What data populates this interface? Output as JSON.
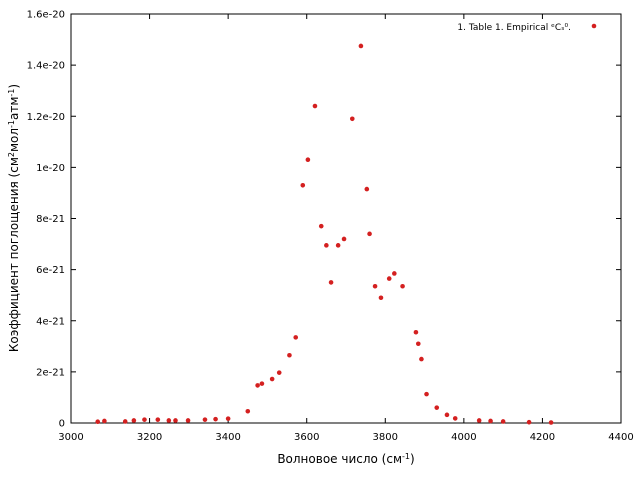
{
  "chart_data": {
    "type": "scatter",
    "xlabel": "Волновое число (см",
    "xlabel_sup": "-1",
    "xlabel_tail": ")",
    "ylabel": {
      "parts": [
        {
          "text": "Коэффициент поглощения (см",
          "sup": false
        },
        {
          "text": "2",
          "sup": true
        },
        {
          "text": "мол",
          "sup": false
        },
        {
          "text": "-1",
          "sup": true
        },
        {
          "text": "атм",
          "sup": false
        },
        {
          "text": "-1",
          "sup": true
        },
        {
          "text": ")",
          "sup": false
        }
      ]
    },
    "xlim": [
      3000,
      4400
    ],
    "ylim": [
      0,
      1.6e-20
    ],
    "xticks": [
      3000,
      3200,
      3400,
      3600,
      3800,
      4000,
      4200,
      4400
    ],
    "xtick_labels": [
      "3000",
      "3200",
      "3400",
      "3600",
      "3800",
      "4000",
      "4200",
      "4400"
    ],
    "yticks": [
      0,
      2e-21,
      4e-21,
      6e-21,
      8e-21,
      1e-20,
      1.2e-20,
      1.4e-20,
      1.6e-20
    ],
    "ytick_labels": [
      "0",
      "2e-21",
      "4e-21",
      "6e-21",
      "8e-21",
      "1e-20",
      "1.2e-20",
      "1.4e-20",
      "1.6e-20"
    ],
    "grid": false,
    "legend_position": "top-right",
    "series": [
      {
        "name": "1. Table 1. Empirical ᵉCₛ⁰.",
        "color": "#d42020",
        "points": [
          [
            3068,
            5e-23
          ],
          [
            3085,
            8e-23
          ],
          [
            3138,
            6e-23
          ],
          [
            3160,
            1e-22
          ],
          [
            3187,
            1.3e-22
          ],
          [
            3221,
            1.3e-22
          ],
          [
            3249,
            1e-22
          ],
          [
            3266,
            1e-22
          ],
          [
            3298,
            1e-22
          ],
          [
            3341,
            1.3e-22
          ],
          [
            3368,
            1.5e-22
          ],
          [
            3400,
            1.7e-22
          ],
          [
            3450,
            4.6e-22
          ],
          [
            3475,
            1.47e-21
          ],
          [
            3486,
            1.54e-21
          ],
          [
            3512,
            1.72e-21
          ],
          [
            3530,
            1.97e-21
          ],
          [
            3556,
            2.65e-21
          ],
          [
            3572,
            3.35e-21
          ],
          [
            3590,
            9.3e-21
          ],
          [
            3603,
            1.03e-20
          ],
          [
            3621,
            1.24e-20
          ],
          [
            3637,
            7.7e-21
          ],
          [
            3650,
            6.95e-21
          ],
          [
            3662,
            5.5e-21
          ],
          [
            3680,
            6.95e-21
          ],
          [
            3695,
            7.2e-21
          ],
          [
            3716,
            1.19e-20
          ],
          [
            3738,
            1.475e-20
          ],
          [
            3753,
            9.15e-21
          ],
          [
            3760,
            7.4e-21
          ],
          [
            3774,
            5.35e-21
          ],
          [
            3789,
            4.9e-21
          ],
          [
            3810,
            5.65e-21
          ],
          [
            3823,
            5.85e-21
          ],
          [
            3844,
            5.35e-21
          ],
          [
            3878,
            3.55e-21
          ],
          [
            3884,
            3.1e-21
          ],
          [
            3892,
            2.5e-21
          ],
          [
            3905,
            1.13e-21
          ],
          [
            3931,
            6e-22
          ],
          [
            3957,
            3.2e-22
          ],
          [
            3978,
            1.8e-22
          ],
          [
            4039,
            1e-22
          ],
          [
            4068,
            8e-23
          ],
          [
            4100,
            6e-23
          ],
          [
            4166,
            3e-23
          ],
          [
            4222,
            2e-23
          ]
        ]
      }
    ]
  }
}
